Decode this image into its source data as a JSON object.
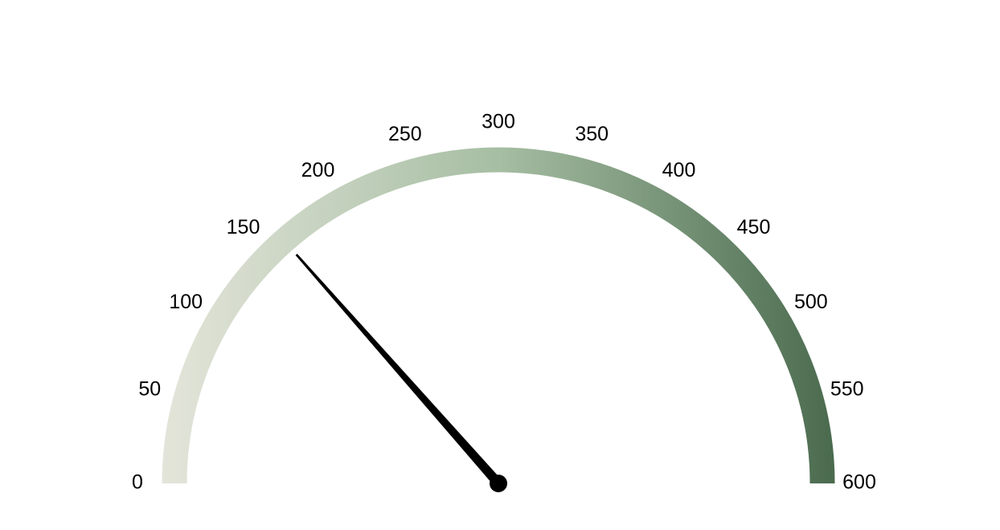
{
  "chart_data": {
    "type": "gauge",
    "min": 0,
    "max": 600,
    "value": 162,
    "tick_labels": [
      "0",
      "50",
      "100",
      "150",
      "200",
      "250",
      "300",
      "350",
      "400",
      "450",
      "500",
      "550",
      "600"
    ],
    "tick_values": [
      0,
      50,
      100,
      150,
      200,
      250,
      300,
      350,
      400,
      450,
      500,
      550,
      600
    ],
    "colors": {
      "arc_start": "#e4e5da",
      "arc_mid": "#a6bea3",
      "arc_end": "#4a6a4e",
      "needle": "#000000",
      "tick_label": "#000000"
    }
  }
}
